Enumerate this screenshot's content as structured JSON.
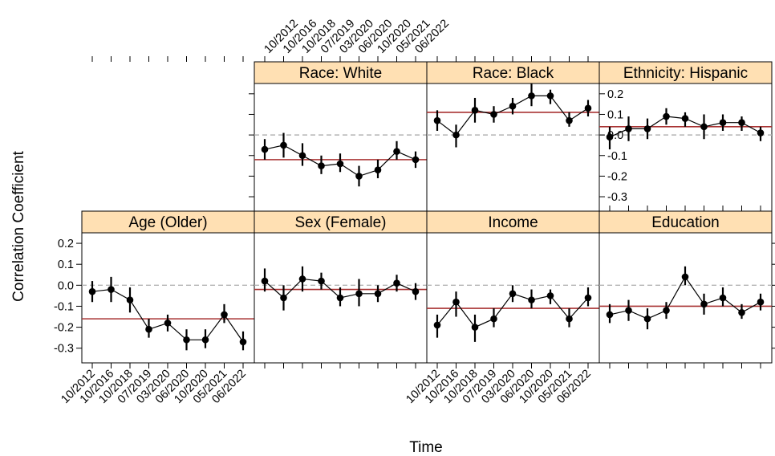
{
  "chart_data": {
    "type": "line",
    "xlabel": "Time",
    "ylabel": "Correlation Coefficient",
    "categories": [
      "10/2012",
      "10/2016",
      "10/2018",
      "07/2019",
      "03/2020",
      "06/2020",
      "10/2020",
      "05/2021",
      "06/2022"
    ],
    "ylim": [
      -0.37,
      0.25
    ],
    "yticks": [
      -0.3,
      -0.2,
      -0.1,
      0.0,
      0.1,
      0.2
    ],
    "ytick_labels": [
      "-0.3",
      "-0.2",
      "-0.1",
      "0.0",
      "0.1",
      "0.2"
    ],
    "reference_line": 0.0,
    "colors": {
      "strip": "#ffe0b3",
      "mean_line": "#a83232",
      "reference_line": "#b5b5b5",
      "points": "#000000"
    },
    "panels": [
      {
        "name": "Race: White",
        "values": [
          -0.07,
          -0.05,
          -0.1,
          -0.15,
          -0.14,
          -0.2,
          -0.17,
          -0.08,
          -0.12
        ],
        "ci_lower": [
          -0.12,
          -0.11,
          -0.15,
          -0.19,
          -0.18,
          -0.25,
          -0.21,
          -0.12,
          -0.16
        ],
        "ci_upper": [
          -0.02,
          0.01,
          -0.04,
          -0.1,
          -0.09,
          -0.15,
          -0.12,
          -0.03,
          -0.08
        ],
        "mean": -0.12
      },
      {
        "name": "Race: Black",
        "values": [
          0.07,
          0.0,
          0.12,
          0.1,
          0.14,
          0.19,
          0.19,
          0.07,
          0.13
        ],
        "ci_lower": [
          0.02,
          -0.06,
          0.06,
          0.06,
          0.1,
          0.14,
          0.15,
          0.04,
          0.09
        ],
        "ci_upper": [
          0.12,
          0.05,
          0.18,
          0.14,
          0.18,
          0.25,
          0.22,
          0.11,
          0.17
        ],
        "mean": 0.11
      },
      {
        "name": "Ethnicity: Hispanic",
        "values": [
          -0.01,
          0.03,
          0.03,
          0.09,
          0.08,
          0.04,
          0.06,
          0.06,
          0.01
        ],
        "ci_lower": [
          -0.07,
          -0.03,
          -0.02,
          0.05,
          0.04,
          -0.02,
          0.02,
          0.02,
          -0.03
        ],
        "ci_upper": [
          0.04,
          0.09,
          0.08,
          0.13,
          0.11,
          0.1,
          0.1,
          0.09,
          0.04
        ],
        "mean": 0.04
      },
      {
        "name": "Age (Older)",
        "values": [
          -0.03,
          -0.02,
          -0.07,
          -0.21,
          -0.18,
          -0.26,
          -0.26,
          -0.14,
          -0.27
        ],
        "ci_lower": [
          -0.08,
          -0.08,
          -0.13,
          -0.25,
          -0.22,
          -0.31,
          -0.3,
          -0.18,
          -0.31
        ],
        "ci_upper": [
          0.02,
          0.04,
          -0.01,
          -0.16,
          -0.14,
          -0.21,
          -0.21,
          -0.09,
          -0.22
        ],
        "mean": -0.16
      },
      {
        "name": "Sex (Female)",
        "values": [
          0.02,
          -0.06,
          0.03,
          0.02,
          -0.06,
          -0.04,
          -0.04,
          0.01,
          -0.03
        ],
        "ci_lower": [
          -0.03,
          -0.12,
          -0.03,
          -0.02,
          -0.1,
          -0.1,
          -0.08,
          -0.03,
          -0.07
        ],
        "ci_upper": [
          0.08,
          0.0,
          0.09,
          0.06,
          -0.01,
          0.03,
          0.0,
          0.05,
          0.01
        ],
        "mean": -0.02
      },
      {
        "name": "Income",
        "values": [
          -0.19,
          -0.08,
          -0.2,
          -0.16,
          -0.04,
          -0.07,
          -0.05,
          -0.16,
          -0.06
        ],
        "ci_lower": [
          -0.25,
          -0.15,
          -0.27,
          -0.2,
          -0.08,
          -0.11,
          -0.09,
          -0.2,
          -0.1
        ],
        "ci_upper": [
          -0.14,
          -0.03,
          -0.14,
          -0.11,
          0.0,
          -0.02,
          -0.02,
          -0.11,
          -0.01
        ],
        "mean": -0.11
      },
      {
        "name": "Education",
        "values": [
          -0.14,
          -0.12,
          -0.16,
          -0.12,
          0.04,
          -0.09,
          -0.06,
          -0.13,
          -0.08
        ],
        "ci_lower": [
          -0.18,
          -0.17,
          -0.21,
          -0.16,
          0.0,
          -0.14,
          -0.1,
          -0.16,
          -0.12
        ],
        "ci_upper": [
          -0.09,
          -0.07,
          -0.11,
          -0.08,
          0.09,
          -0.04,
          -0.01,
          -0.09,
          -0.04
        ],
        "mean": -0.1
      }
    ]
  }
}
